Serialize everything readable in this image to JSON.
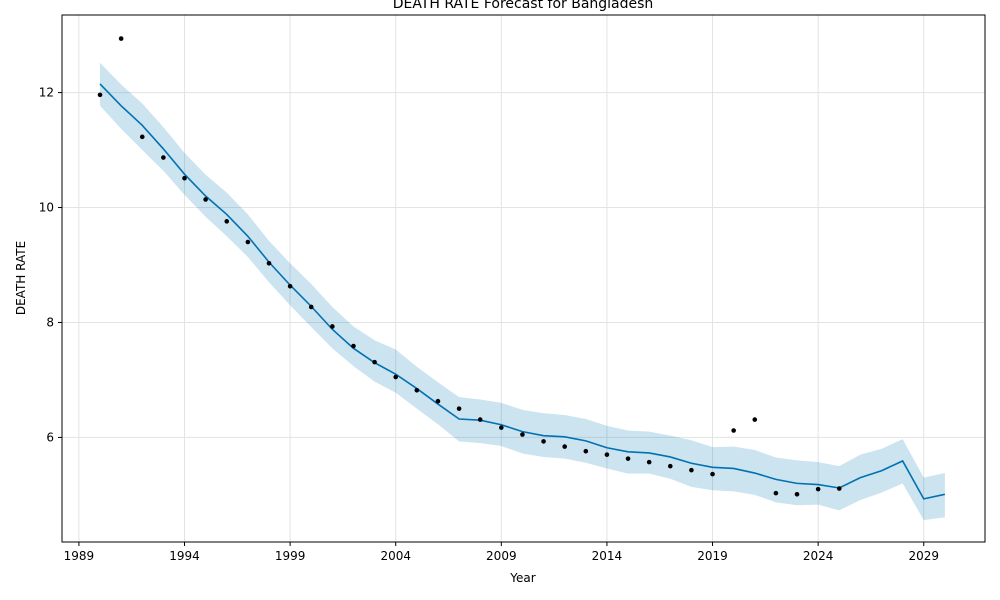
{
  "chart_data": {
    "type": "line",
    "title": "DEATH RATE Forecast for Bangladesh",
    "xlabel": "Year",
    "ylabel": "DEATH RATE",
    "xlim": [
      1988.2,
      2031.9
    ],
    "ylim": [
      4.18,
      13.35
    ],
    "grid": true,
    "x_ticks": [
      1989,
      1994,
      1999,
      2004,
      2009,
      2014,
      2019,
      2024,
      2029
    ],
    "y_ticks": [
      6,
      8,
      10,
      12
    ],
    "colors": {
      "forecast": "#0072B2",
      "band": "#0072B2",
      "observed": "#000000"
    },
    "observed": {
      "x": [
        1990,
        1991,
        1992,
        1993,
        1994,
        1995,
        1996,
        1997,
        1998,
        1999,
        2000,
        2001,
        2002,
        2003,
        2004,
        2005,
        2006,
        2007,
        2008,
        2009,
        2010,
        2011,
        2012,
        2013,
        2014,
        2015,
        2016,
        2017,
        2018,
        2019,
        2020,
        2021,
        2022,
        2023,
        2024,
        2025
      ],
      "y": [
        11.96,
        12.94,
        11.23,
        10.87,
        10.51,
        10.14,
        9.76,
        9.4,
        9.03,
        8.63,
        8.27,
        7.93,
        7.59,
        7.31,
        7.05,
        6.82,
        6.63,
        6.5,
        6.31,
        6.17,
        6.05,
        5.93,
        5.84,
        5.76,
        5.7,
        5.63,
        5.57,
        5.5,
        5.43,
        5.36,
        6.12,
        6.31,
        5.03,
        5.01,
        5.1,
        5.11
      ]
    },
    "forecast": {
      "x": [
        1990,
        1991,
        1992,
        1993,
        1994,
        1995,
        1996,
        1997,
        1998,
        1999,
        2000,
        2001,
        2002,
        2003,
        2004,
        2005,
        2006,
        2007,
        2008,
        2009,
        2010,
        2011,
        2012,
        2013,
        2014,
        2015,
        2016,
        2017,
        2018,
        2019,
        2020,
        2021,
        2022,
        2023,
        2024,
        2025,
        2026,
        2027,
        2028,
        2029,
        2030
      ],
      "yhat": [
        12.15,
        11.77,
        11.43,
        11.02,
        10.58,
        10.2,
        9.88,
        9.5,
        9.05,
        8.65,
        8.28,
        7.88,
        7.55,
        7.3,
        7.1,
        6.85,
        6.58,
        6.32,
        6.3,
        6.22,
        6.1,
        6.03,
        6.01,
        5.94,
        5.82,
        5.75,
        5.73,
        5.66,
        5.55,
        5.48,
        5.46,
        5.38,
        5.27,
        5.2,
        5.18,
        5.12,
        5.3,
        5.42,
        5.59,
        4.93,
        5.01
      ],
      "lower": [
        11.77,
        11.37,
        11.0,
        10.64,
        10.22,
        9.84,
        9.5,
        9.14,
        8.7,
        8.3,
        7.92,
        7.55,
        7.24,
        6.97,
        6.78,
        6.5,
        6.23,
        5.93,
        5.9,
        5.85,
        5.72,
        5.66,
        5.63,
        5.56,
        5.46,
        5.37,
        5.37,
        5.28,
        5.14,
        5.08,
        5.06,
        5.0,
        4.87,
        4.82,
        4.83,
        4.73,
        4.91,
        5.04,
        5.2,
        4.56,
        4.61
      ],
      "upper": [
        12.52,
        12.14,
        11.81,
        11.4,
        10.95,
        10.57,
        10.26,
        9.88,
        9.42,
        9.03,
        8.67,
        8.27,
        7.93,
        7.69,
        7.53,
        7.23,
        6.96,
        6.7,
        6.66,
        6.6,
        6.48,
        6.42,
        6.39,
        6.32,
        6.2,
        6.12,
        6.1,
        6.03,
        5.95,
        5.83,
        5.84,
        5.78,
        5.65,
        5.6,
        5.57,
        5.5,
        5.7,
        5.8,
        5.97,
        5.3,
        5.38
      ]
    }
  }
}
